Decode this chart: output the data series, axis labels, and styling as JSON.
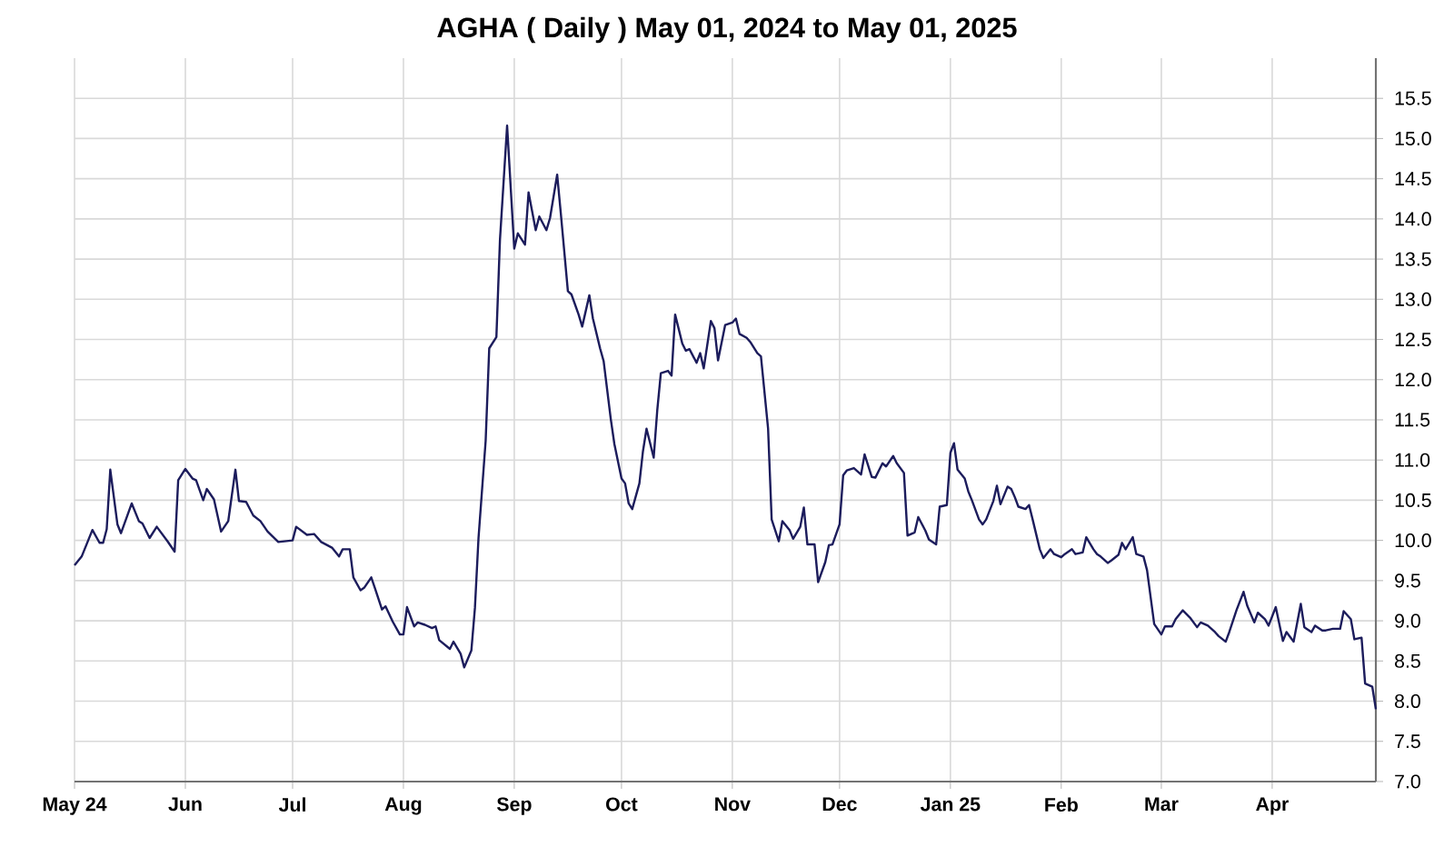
{
  "chart_data": {
    "type": "line",
    "title": "AGHA ( Daily ) May 01, 2024 to May 01, 2025",
    "xlim": [
      "2024-05-01",
      "2025-04-30"
    ],
    "xticks": [
      {
        "value": "2024-05-01",
        "label": "May 24"
      },
      {
        "value": "2024-06-01",
        "label": "Jun"
      },
      {
        "value": "2024-07-01",
        "label": "Jul"
      },
      {
        "value": "2024-08-01",
        "label": "Aug"
      },
      {
        "value": "2024-09-01",
        "label": "Sep"
      },
      {
        "value": "2024-10-01",
        "label": "Oct"
      },
      {
        "value": "2024-11-01",
        "label": "Nov"
      },
      {
        "value": "2024-12-01",
        "label": "Dec"
      },
      {
        "value": "2025-01-01",
        "label": "Jan 25"
      },
      {
        "value": "2025-02-01",
        "label": "Feb"
      },
      {
        "value": "2025-03-01",
        "label": "Mar"
      },
      {
        "value": "2025-04-01",
        "label": "Apr"
      }
    ],
    "ylim": [
      7,
      16
    ],
    "yticks": [
      {
        "value": 7,
        "label": "7.0"
      },
      7.5,
      {
        "value": 8,
        "label": "8.0"
      },
      8.5,
      {
        "value": 9,
        "label": "9.0"
      },
      9.5,
      {
        "value": 10,
        "label": "10.0"
      },
      10.5,
      {
        "value": 11,
        "label": "11.0"
      },
      11.5,
      {
        "value": 12,
        "label": "12.0"
      },
      12.5,
      {
        "value": 13,
        "label": "13.0"
      },
      13.5,
      {
        "value": 14,
        "label": "14.0"
      },
      14.5,
      {
        "value": 15,
        "label": "15.0"
      },
      15.5
    ],
    "grid": true,
    "series": [
      {
        "color": "#1c1c5c",
        "x": [
          "2024-05-01",
          "2024-05-03",
          "2024-05-06",
          "2024-05-08",
          "2024-05-09",
          "2024-05-10",
          "2024-05-11",
          "2024-05-13",
          "2024-05-14",
          "2024-05-17",
          "2024-05-19",
          "2024-05-20",
          "2024-05-22",
          "2024-05-24",
          "2024-05-27",
          "2024-05-29",
          "2024-05-30",
          "2024-06-01",
          "2024-06-03",
          "2024-06-04",
          "2024-06-06",
          "2024-06-07",
          "2024-06-09",
          "2024-06-11",
          "2024-06-13",
          "2024-06-15",
          "2024-06-16",
          "2024-06-18",
          "2024-06-20",
          "2024-06-22",
          "2024-06-24",
          "2024-06-27",
          "2024-07-01",
          "2024-07-02",
          "2024-07-05",
          "2024-07-07",
          "2024-07-09",
          "2024-07-12",
          "2024-07-14",
          "2024-07-15",
          "2024-07-17",
          "2024-07-18",
          "2024-07-20",
          "2024-07-21",
          "2024-07-23",
          "2024-07-24",
          "2024-07-26",
          "2024-07-27",
          "2024-07-29",
          "2024-07-31",
          "2024-08-01",
          "2024-08-02",
          "2024-08-04",
          "2024-08-05",
          "2024-08-07",
          "2024-08-09",
          "2024-08-10",
          "2024-08-11",
          "2024-08-14",
          "2024-08-15",
          "2024-08-17",
          "2024-08-18",
          "2024-08-20",
          "2024-08-21",
          "2024-08-22",
          "2024-08-24",
          "2024-08-25",
          "2024-08-27",
          "2024-08-28",
          "2024-08-30",
          "2024-09-01",
          "2024-09-02",
          "2024-09-04",
          "2024-09-05",
          "2024-09-07",
          "2024-09-08",
          "2024-09-10",
          "2024-09-11",
          "2024-09-13",
          "2024-09-14",
          "2024-09-16",
          "2024-09-17",
          "2024-09-19",
          "2024-09-20",
          "2024-09-22",
          "2024-09-23",
          "2024-09-25",
          "2024-09-26",
          "2024-09-28",
          "2024-09-29",
          "2024-10-01",
          "2024-10-02",
          "2024-10-03",
          "2024-10-04",
          "2024-10-06",
          "2024-10-07",
          "2024-10-08",
          "2024-10-10",
          "2024-10-11",
          "2024-10-12",
          "2024-10-14",
          "2024-10-15",
          "2024-10-16",
          "2024-10-18",
          "2024-10-19",
          "2024-10-20",
          "2024-10-22",
          "2024-10-23",
          "2024-10-24",
          "2024-10-26",
          "2024-10-27",
          "2024-10-28",
          "2024-10-30",
          "2024-11-01",
          "2024-11-02",
          "2024-11-03",
          "2024-11-05",
          "2024-11-06",
          "2024-11-08",
          "2024-11-09",
          "2024-11-11",
          "2024-11-12",
          "2024-11-14",
          "2024-11-15",
          "2024-11-17",
          "2024-11-18",
          "2024-11-20",
          "2024-11-21",
          "2024-11-22",
          "2024-11-24",
          "2024-11-25",
          "2024-11-27",
          "2024-11-28",
          "2024-11-29",
          "2024-12-01",
          "2024-12-02",
          "2024-12-03",
          "2024-12-05",
          "2024-12-07",
          "2024-12-08",
          "2024-12-10",
          "2024-12-11",
          "2024-12-13",
          "2024-12-14",
          "2024-12-16",
          "2024-12-17",
          "2024-12-19",
          "2024-12-20",
          "2024-12-22",
          "2024-12-23",
          "2024-12-25",
          "2024-12-26",
          "2024-12-28",
          "2024-12-29",
          "2024-12-31",
          "2025-01-01",
          "2025-01-02",
          "2025-01-03",
          "2025-01-05",
          "2025-01-06",
          "2025-01-07",
          "2025-01-09",
          "2025-01-10",
          "2025-01-11",
          "2025-01-13",
          "2025-01-14",
          "2025-01-15",
          "2025-01-17",
          "2025-01-18",
          "2025-01-19",
          "2025-01-20",
          "2025-01-22",
          "2025-01-23",
          "2025-01-24",
          "2025-01-26",
          "2025-01-27",
          "2025-01-29",
          "2025-01-30",
          "2025-02-01",
          "2025-02-02",
          "2025-02-04",
          "2025-02-05",
          "2025-02-07",
          "2025-02-08",
          "2025-02-10",
          "2025-02-11",
          "2025-02-12",
          "2025-02-14",
          "2025-02-15",
          "2025-02-17",
          "2025-02-18",
          "2025-02-19",
          "2025-02-21",
          "2025-02-22",
          "2025-02-24",
          "2025-02-25",
          "2025-02-27",
          "2025-03-01",
          "2025-03-02",
          "2025-03-04",
          "2025-03-05",
          "2025-03-07",
          "2025-03-09",
          "2025-03-11",
          "2025-03-12",
          "2025-03-14",
          "2025-03-16",
          "2025-03-17",
          "2025-03-19",
          "2025-03-20",
          "2025-03-22",
          "2025-03-24",
          "2025-03-25",
          "2025-03-27",
          "2025-03-28",
          "2025-03-30",
          "2025-03-31",
          "2025-04-02",
          "2025-04-04",
          "2025-04-05",
          "2025-04-07",
          "2025-04-09",
          "2025-04-10",
          "2025-04-12",
          "2025-04-13",
          "2025-04-15",
          "2025-04-16",
          "2025-04-18",
          "2025-04-20",
          "2025-04-21",
          "2025-04-23",
          "2025-04-24",
          "2025-04-26",
          "2025-04-27",
          "2025-04-29",
          "2025-04-30"
        ],
        "values": [
          9.69,
          9.8,
          10.13,
          9.97,
          9.97,
          10.14,
          10.88,
          10.2,
          10.09,
          10.46,
          10.24,
          10.21,
          10.03,
          10.17,
          9.99,
          9.86,
          10.75,
          10.89,
          10.77,
          10.75,
          10.5,
          10.64,
          10.51,
          10.11,
          10.24,
          10.88,
          10.49,
          10.48,
          10.31,
          10.24,
          10.11,
          9.98,
          10.0,
          10.17,
          10.07,
          10.08,
          9.98,
          9.91,
          9.8,
          9.89,
          9.89,
          9.54,
          9.38,
          9.41,
          9.54,
          9.41,
          9.14,
          9.18,
          8.99,
          8.83,
          8.83,
          9.17,
          8.93,
          8.98,
          8.95,
          8.91,
          8.93,
          8.76,
          8.65,
          8.74,
          8.59,
          8.42,
          8.63,
          9.16,
          10.03,
          11.24,
          12.39,
          12.53,
          13.74,
          15.16,
          13.63,
          13.82,
          13.68,
          14.33,
          13.86,
          14.03,
          13.86,
          14.01,
          14.55,
          14.08,
          13.1,
          13.06,
          12.81,
          12.66,
          13.05,
          12.76,
          12.39,
          12.23,
          11.51,
          11.2,
          10.77,
          10.71,
          10.46,
          10.39,
          10.71,
          11.11,
          11.39,
          11.03,
          11.62,
          12.08,
          12.11,
          12.05,
          12.81,
          12.45,
          12.36,
          12.38,
          12.21,
          12.33,
          12.14,
          12.73,
          12.64,
          12.24,
          12.68,
          12.71,
          12.76,
          12.57,
          12.52,
          12.47,
          12.33,
          12.29,
          11.39,
          10.26,
          9.99,
          10.24,
          10.13,
          10.02,
          10.17,
          10.41,
          9.95,
          9.95,
          9.48,
          9.73,
          9.94,
          9.95,
          10.2,
          10.81,
          10.87,
          10.9,
          10.82,
          11.07,
          10.79,
          10.78,
          10.96,
          10.92,
          11.05,
          10.96,
          10.84,
          10.06,
          10.1,
          10.29,
          10.12,
          10.01,
          9.95,
          10.42,
          10.44,
          11.09,
          11.21,
          10.88,
          10.77,
          10.61,
          10.5,
          10.26,
          10.2,
          10.26,
          10.49,
          10.68,
          10.45,
          10.67,
          10.64,
          10.54,
          10.42,
          10.39,
          10.44,
          10.26,
          9.89,
          9.78,
          9.89,
          9.83,
          9.79,
          9.83,
          9.89,
          9.83,
          9.85,
          10.04,
          9.89,
          9.83,
          9.8,
          9.72,
          9.75,
          9.82,
          9.97,
          9.89,
          10.04,
          9.83,
          9.8,
          9.63,
          8.96,
          8.83,
          8.93,
          8.93,
          9.02,
          9.13,
          9.04,
          8.92,
          8.98,
          8.94,
          8.86,
          8.81,
          8.74,
          8.86,
          9.13,
          9.36,
          9.19,
          8.98,
          9.1,
          9.02,
          8.94,
          9.17,
          8.75,
          8.86,
          8.74,
          9.21,
          8.92,
          8.86,
          8.94,
          8.88,
          8.88,
          8.9,
          8.9,
          9.12,
          9.02,
          8.77,
          8.79,
          8.22,
          8.18,
          7.9
        ]
      }
    ]
  }
}
